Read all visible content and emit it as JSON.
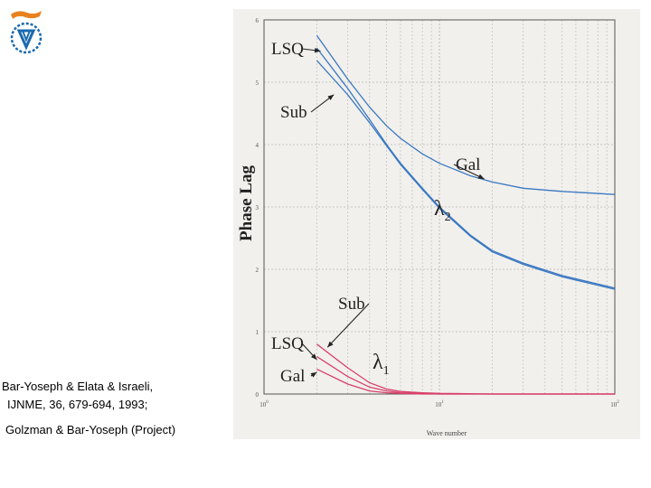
{
  "citation": {
    "line1": "Bar-Yoseph  & Elata & Israeli,",
    "line2": "IJNME, 36, 679-694, 1993;",
    "line3": "Golzman & Bar-Yoseph  (Project)"
  },
  "colors": {
    "lambda2": "#3a78c2",
    "lambda1": "#d8406a",
    "grid": "#b8b8b8",
    "logo_orange": "#e8821e",
    "logo_blue": "#1a6ab0"
  },
  "logo": {
    "icon": "university-logo-icon"
  },
  "chart_data": {
    "type": "line",
    "ylabel": "Phase Lag",
    "xlabel": "Wave number",
    "xscale": "log",
    "xlim": [
      1,
      100
    ],
    "ylim": [
      0,
      6
    ],
    "x_ticks": [
      {
        "value": 1,
        "base": "10",
        "exp": "0"
      },
      {
        "value": 10,
        "base": "10",
        "exp": "1"
      },
      {
        "value": 100,
        "base": "10",
        "exp": "2"
      }
    ],
    "y_ticks": [
      {
        "value": 0,
        "label": "0"
      },
      {
        "value": 1,
        "label": "1"
      },
      {
        "value": 2,
        "label": "2"
      },
      {
        "value": 3,
        "label": "3"
      },
      {
        "value": 4,
        "label": "4"
      },
      {
        "value": 5,
        "label": "5"
      },
      {
        "value": 6,
        "label": "6"
      }
    ],
    "grid": true,
    "series": [
      {
        "group": "lambda2",
        "x": [
          2,
          3,
          4,
          5,
          6,
          8,
          10,
          15,
          20,
          30,
          50,
          100
        ],
        "y": [
          5.75,
          5.05,
          4.6,
          4.3,
          4.1,
          3.85,
          3.7,
          3.5,
          3.4,
          3.3,
          3.25,
          3.2
        ]
      },
      {
        "group": "lambda2",
        "x": [
          2,
          3,
          4,
          5,
          6,
          8,
          10,
          15,
          20,
          30,
          50,
          100
        ],
        "y": [
          5.55,
          4.9,
          4.4,
          4.0,
          3.7,
          3.3,
          3.0,
          2.55,
          2.3,
          2.1,
          1.9,
          1.7
        ]
      },
      {
        "group": "lambda2",
        "x": [
          2,
          3,
          4,
          5,
          6,
          8,
          10,
          15,
          20,
          30,
          50,
          100
        ],
        "y": [
          5.35,
          4.8,
          4.35,
          3.98,
          3.68,
          3.28,
          2.98,
          2.53,
          2.28,
          2.08,
          1.88,
          1.68
        ]
      },
      {
        "group": "lambda1",
        "x": [
          2,
          3,
          4,
          5,
          6,
          8,
          10,
          20,
          50,
          100
        ],
        "y": [
          0.8,
          0.42,
          0.18,
          0.08,
          0.04,
          0.02,
          0.01,
          0.0,
          0.0,
          0.0
        ]
      },
      {
        "group": "lambda1",
        "x": [
          2,
          3,
          4,
          5,
          6,
          8,
          10,
          20,
          50,
          100
        ],
        "y": [
          0.6,
          0.28,
          0.11,
          0.05,
          0.02,
          0.01,
          0.0,
          0.0,
          0.0,
          0.0
        ]
      },
      {
        "group": "lambda1",
        "x": [
          2,
          3,
          4,
          5,
          6,
          8,
          10,
          20,
          50,
          100
        ],
        "y": [
          0.4,
          0.16,
          0.05,
          0.02,
          0.01,
          0.0,
          0.0,
          0.0,
          0.0,
          0.0
        ]
      }
    ],
    "annotations": [
      {
        "text": "LSQ",
        "target_x": 2.1,
        "target_y": 5.5
      },
      {
        "text": "Sub",
        "target_x": 2.5,
        "target_y": 4.8
      },
      {
        "text": "Gal",
        "target_x": 18,
        "target_y": 3.45
      },
      {
        "text": "λ2",
        "math": true,
        "at_x": 15,
        "at_y": 3.0
      },
      {
        "text": "Sub",
        "target_x": 2.3,
        "target_y": 0.75
      },
      {
        "text": "LSQ",
        "target_x": 2.0,
        "target_y": 0.55
      },
      {
        "text": "Gal",
        "target_x": 2.0,
        "target_y": 0.35
      },
      {
        "text": "λ1",
        "math": true,
        "at_x": 5,
        "at_y": 0.5
      }
    ]
  }
}
